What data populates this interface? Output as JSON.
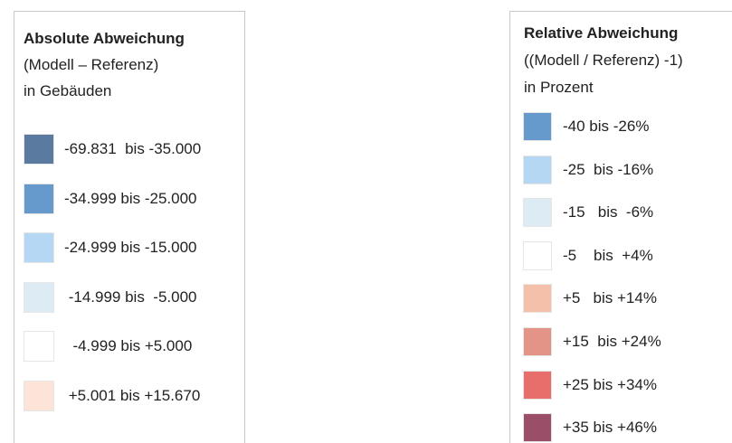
{
  "legends": [
    {
      "title": "Absolute Abweichung",
      "lines": [
        "(Modell – Referenz)",
        "in Gebäuden"
      ],
      "items": [
        {
          "label": "-69.831  bis -35.000",
          "color": "#5a7aa0"
        },
        {
          "label": "-34.999 bis -25.000",
          "color": "#6699cc"
        },
        {
          "label": "-24.999 bis -15.000",
          "color": "#b5d7f3"
        },
        {
          "label": " -14.999 bis  -5.000",
          "color": "#dcebf4"
        },
        {
          "label": "  -4.999 bis +5.000",
          "color": "#ffffff"
        },
        {
          "label": " +5.001 bis +15.670",
          "color": "#fde4d8"
        }
      ]
    },
    {
      "title": "Relative Abweichung",
      "lines": [
        "((Modell / Referenz) -1)",
        "in Prozent"
      ],
      "items": [
        {
          "label": "-40 bis -26%",
          "color": "#6699cc"
        },
        {
          "label": "-25  bis -16%",
          "color": "#b5d7f3"
        },
        {
          "label": "-15   bis  -6%",
          "color": "#dcebf4"
        },
        {
          "label": "-5    bis  +4%",
          "color": "#ffffff"
        },
        {
          "label": "+5   bis +14%",
          "color": "#f5c0a9"
        },
        {
          "label": "+15  bis +24%",
          "color": "#e49487"
        },
        {
          "label": "+25 bis +34%",
          "color": "#e76e6a"
        },
        {
          "label": "+35 bis +46%",
          "color": "#9b4e67"
        }
      ]
    }
  ]
}
